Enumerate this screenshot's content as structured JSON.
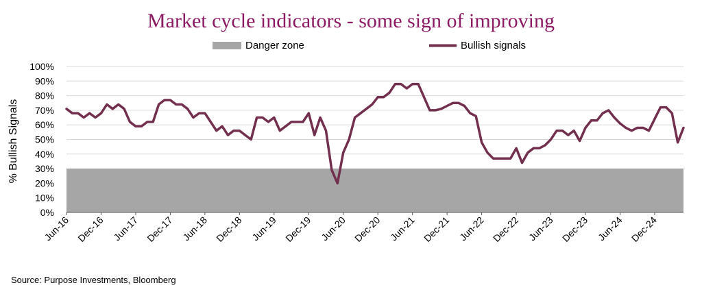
{
  "chart_data": {
    "type": "line",
    "title": "Market cycle indicators - some sign of improving",
    "ylabel": "% Bullish Signals",
    "xlabel": "",
    "ylim": [
      0,
      100
    ],
    "yticks": [
      "0%",
      "10%",
      "20%",
      "30%",
      "40%",
      "50%",
      "60%",
      "70%",
      "80%",
      "90%",
      "100%"
    ],
    "xticks": [
      "Jun-16",
      "Dec-16",
      "Jun-17",
      "Dec-17",
      "Jun-18",
      "Dec-18",
      "Jun-19",
      "Dec-19",
      "Jun-20",
      "Dec-20",
      "Jun-21",
      "Dec-21",
      "Jun-22",
      "Dec-22",
      "Jun-23",
      "Dec-23",
      "Jun-24",
      "Dec-24"
    ],
    "grid": true,
    "legend_position": "top",
    "danger_zone": {
      "name": "Danger zone",
      "from": 0,
      "to": 30,
      "color": "#a6a6a6"
    },
    "series": [
      {
        "name": "Bullish signals",
        "color": "#722f4e",
        "start": "Jun-16",
        "frequency": "monthly",
        "values": [
          71,
          68,
          68,
          65,
          68,
          65,
          68,
          74,
          71,
          74,
          71,
          62,
          59,
          59,
          62,
          62,
          74,
          77,
          77,
          74,
          74,
          71,
          65,
          68,
          68,
          62,
          56,
          59,
          53,
          56,
          56,
          53,
          50,
          65,
          65,
          62,
          65,
          56,
          59,
          62,
          62,
          62,
          68,
          53,
          65,
          56,
          29,
          20,
          41,
          50,
          65,
          68,
          71,
          74,
          79,
          79,
          82,
          88,
          88,
          85,
          88,
          88,
          79,
          70,
          70,
          71,
          73,
          75,
          75,
          73,
          68,
          66,
          48,
          41,
          37,
          37,
          37,
          37,
          44,
          34,
          41,
          44,
          44,
          46,
          50,
          56,
          56,
          53,
          56,
          49,
          58,
          63,
          63,
          68,
          70,
          65,
          61,
          58,
          56,
          58,
          58,
          56,
          64,
          72,
          72,
          68,
          48,
          58
        ]
      }
    ]
  },
  "source": "Source: Purpose Investments, Bloomberg"
}
